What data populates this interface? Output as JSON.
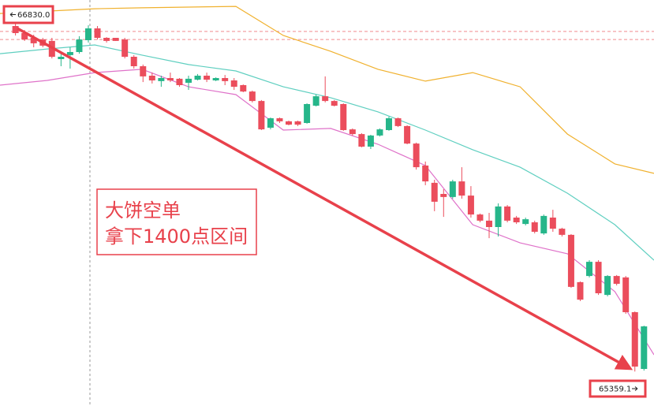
{
  "chart_data": {
    "type": "candlestick",
    "xlim": [
      -1.7,
      70.1
    ],
    "ylim": [
      65213.3,
      66930
    ],
    "up_color": "#26b68a",
    "down_color": "#eb4d5c",
    "candles": {
      "open": [
        66820,
        66790,
        66770,
        66763,
        66757,
        66680,
        66697,
        66710,
        66760,
        66810,
        66770,
        66770,
        66763,
        66690,
        66650,
        66610,
        66587,
        66600,
        66597,
        66580,
        66593,
        66610,
        66590,
        66600,
        66590,
        66570,
        66543,
        66503,
        66390,
        66430,
        66417,
        66417,
        66410,
        66483,
        66523,
        66503,
        66490,
        66383,
        66363,
        66310,
        66357,
        66380,
        66430,
        66397,
        66323,
        66230,
        66157,
        66110,
        66097,
        66163,
        66103,
        66023,
        65997,
        65970,
        66057,
        66010,
        65983,
        65990,
        65943,
        66010,
        65963,
        65937,
        65737,
        65763,
        65823,
        65683,
        65763,
        65757,
        65610,
        65370
      ],
      "high": [
        66830,
        66803,
        66783,
        66770,
        66770,
        66703,
        66730,
        66777,
        66823,
        66820,
        66773,
        66770,
        66770,
        66697,
        66657,
        66623,
        66610,
        66623,
        66600,
        66610,
        66617,
        66623,
        66603,
        66613,
        66600,
        66573,
        66547,
        66507,
        66433,
        66433,
        66420,
        66420,
        66493,
        66530,
        66607,
        66507,
        66493,
        66387,
        66367,
        66360,
        66387,
        66437,
        66433,
        66400,
        66327,
        66247,
        66170,
        66130,
        66170,
        66223,
        66143,
        66027,
        66030,
        66070,
        66063,
        66017,
        66010,
        65997,
        66023,
        66043,
        65967,
        65940,
        65740,
        65830,
        65830,
        65767,
        65767,
        65763,
        65613,
        65553
      ],
      "low": [
        66780,
        66757,
        66730,
        66730,
        66683,
        66650,
        66640,
        66703,
        66750,
        66763,
        66750,
        66757,
        66683,
        66640,
        66583,
        66577,
        66563,
        66583,
        66563,
        66550,
        66590,
        66583,
        66587,
        66570,
        66550,
        66540,
        66497,
        66380,
        66383,
        66410,
        66400,
        66397,
        66407,
        66480,
        66497,
        66480,
        66377,
        66357,
        66307,
        66300,
        66353,
        66377,
        66393,
        66320,
        66213,
        66147,
        66037,
        66013,
        66090,
        66090,
        66010,
        65990,
        65923,
        65930,
        65990,
        65983,
        65977,
        65943,
        65937,
        65950,
        65930,
        65713,
        65657,
        65757,
        65683,
        65677,
        65723,
        65603,
        65359.1,
        65363
      ],
      "close": [
        66790,
        66763,
        66747,
        66737,
        66690,
        66690,
        66710,
        66763,
        66810,
        66770,
        66757,
        66757,
        66690,
        66650,
        66607,
        66590,
        66600,
        66590,
        66570,
        66597,
        66610,
        66593,
        66600,
        66587,
        66563,
        66543,
        66503,
        66383,
        66430,
        66417,
        66403,
        66403,
        66490,
        66523,
        66503,
        66483,
        66380,
        66363,
        66310,
        66357,
        66383,
        66430,
        66397,
        66323,
        66223,
        66163,
        66077,
        66097,
        66163,
        66103,
        66023,
        65997,
        65970,
        66057,
        65997,
        65990,
        66003,
        65950,
        66017,
        65963,
        65937,
        65717,
        65663,
        65823,
        65690,
        65763,
        65730,
        65610,
        65380,
        65550
      ]
    },
    "series": [
      {
        "color": "#f0b12e",
        "x": [
          -1.7,
          3.5,
          8.7,
          13.9,
          19.0,
          24.2,
          29.4,
          34.6,
          39.8,
          45.0,
          50.2,
          55.4,
          60.6,
          65.8,
          70.1
        ],
        "values": [
          66873,
          66883,
          66893,
          66897,
          66900,
          66903,
          66780,
          66713,
          66637,
          66587,
          66623,
          66563,
          66363,
          66237,
          66197
        ]
      },
      {
        "color": "#5fcfc0",
        "x": [
          -1.7,
          3.5,
          8.7,
          13.9,
          19.0,
          24.2,
          29.4,
          34.6,
          39.8,
          45.0,
          50.2,
          55.4,
          60.6,
          65.8,
          70.1
        ],
        "values": [
          66703,
          66723,
          66740,
          66697,
          66657,
          66630,
          66563,
          66517,
          66457,
          66380,
          66297,
          66223,
          66113,
          65980,
          65830
        ]
      },
      {
        "color": "#df72c9",
        "x": [
          -1.7,
          3.5,
          8.7,
          13.9,
          19.0,
          24.2,
          29.4,
          34.6,
          39.8,
          45.0,
          50.2,
          55.4,
          60.6,
          65.8,
          70.1
        ],
        "values": [
          66570,
          66590,
          66623,
          66637,
          66563,
          66530,
          66380,
          66387,
          66320,
          66230,
          65980,
          65903,
          65857,
          65697,
          65430
        ]
      }
    ],
    "price_lines": [
      66797,
      66763
    ],
    "price_markers": [
      {
        "value": 66830,
        "label": "66830.0"
      },
      {
        "value": 65359.1,
        "label": "65359.1"
      }
    ],
    "annotation": [
      "大饼空单",
      "拿下1400点区间"
    ]
  }
}
